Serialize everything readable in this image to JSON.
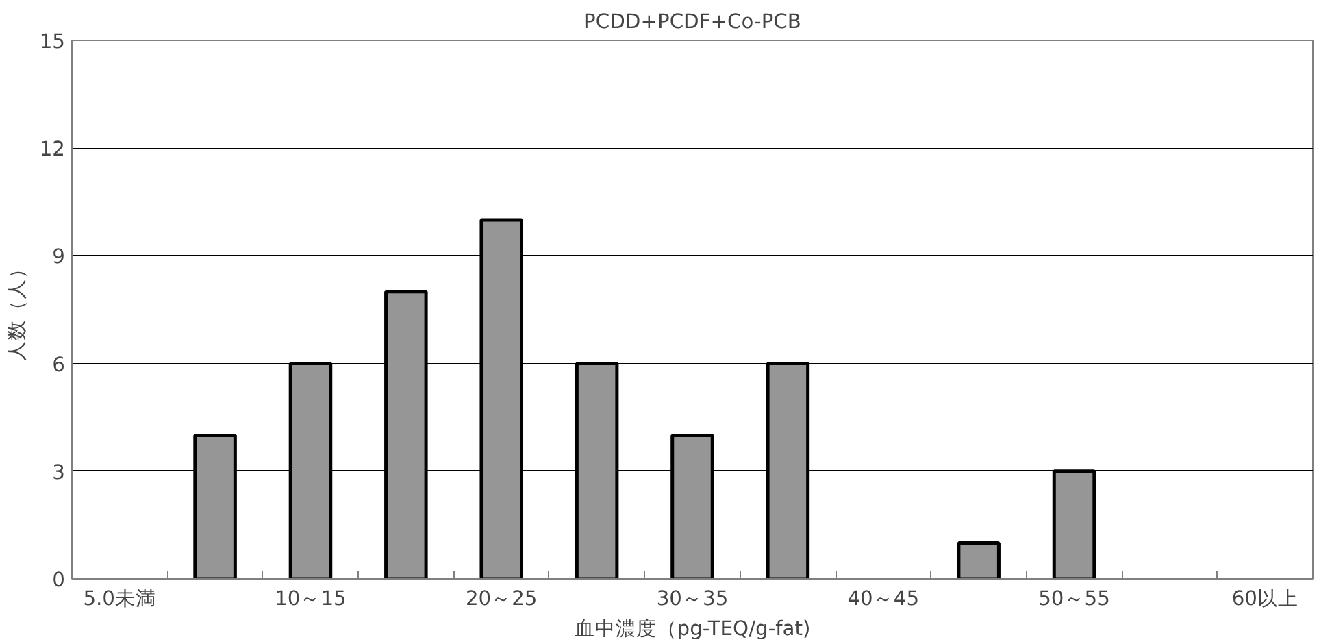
{
  "chart_data": {
    "type": "bar",
    "title": "PCDD+PCDF+Co-PCB",
    "xlabel": "血中濃度（pg-TEQ/g-fat)",
    "ylabel": "人数（人）",
    "categories": [
      "5.0未満",
      null,
      "10～15",
      null,
      "20～25",
      null,
      "30～35",
      null,
      "40～45",
      null,
      "50～55",
      null,
      "60以上"
    ],
    "values": [
      0,
      4,
      6,
      8,
      10,
      6,
      4,
      6,
      0,
      1,
      3,
      0,
      0
    ],
    "color": "#969696",
    "ylim": [
      0,
      15
    ],
    "yticks": [
      0,
      3,
      6,
      9,
      12,
      15
    ],
    "grid": "y"
  }
}
